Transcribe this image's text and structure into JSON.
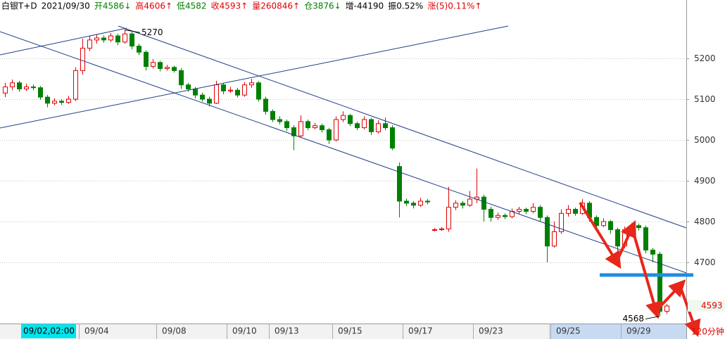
{
  "chart_data": {
    "type": "candlestick",
    "header": [
      {
        "text": "白银T+D",
        "color": "#000000"
      },
      {
        "text": "2021/09/30",
        "color": "#000000"
      },
      {
        "text": "开4586↓",
        "color": "#008000"
      },
      {
        "text": "高4606↑",
        "color": "#e00000"
      },
      {
        "text": "低4582",
        "color": "#008000"
      },
      {
        "text": "收4593↑",
        "color": "#e00000"
      },
      {
        "text": "量260846↑",
        "color": "#e00000"
      },
      {
        "text": "仓3876↓",
        "color": "#008000"
      },
      {
        "text": "增-44190",
        "color": "#000000"
      },
      {
        "text": "振0.52%",
        "color": "#000000"
      },
      {
        "text": "涨(5)0.11%↑",
        "color": "#e00000"
      }
    ],
    "categories": [
      null,
      null,
      null,
      null,
      null,
      null,
      null,
      null,
      null,
      null,
      null,
      "09/04",
      null,
      null,
      null,
      null,
      null,
      null,
      null,
      null,
      null,
      null,
      "09/08",
      null,
      null,
      null,
      null,
      null,
      null,
      null,
      null,
      null,
      "09/10",
      null,
      null,
      null,
      null,
      null,
      "09/13",
      null,
      null,
      null,
      null,
      null,
      null,
      null,
      null,
      "09/15",
      null,
      null,
      null,
      null,
      null,
      null,
      null,
      null,
      null,
      "09/17",
      null,
      null,
      null,
      null,
      null,
      null,
      null,
      null,
      null,
      "09/23",
      null,
      null,
      null,
      null,
      null,
      null,
      null,
      null,
      null,
      null,
      "09/25",
      null,
      null,
      null,
      null,
      null,
      null,
      null,
      null,
      null,
      "09/29",
      null,
      null,
      null,
      null,
      null,
      null
    ],
    "cursor_label": "09/02,02:00",
    "period_label": "120分钟",
    "up_color": "#e00000",
    "down_color": "#008000",
    "ohlc": [
      [
        5115,
        5140,
        5105,
        5130
      ],
      [
        5130,
        5148,
        5122,
        5140
      ],
      [
        5140,
        5145,
        5118,
        5125
      ],
      [
        5125,
        5138,
        5120,
        5130
      ],
      [
        5130,
        5136,
        5122,
        5128
      ],
      [
        5128,
        5132,
        5098,
        5105
      ],
      [
        5105,
        5110,
        5080,
        5090
      ],
      [
        5090,
        5102,
        5085,
        5095
      ],
      [
        5095,
        5100,
        5086,
        5092
      ],
      [
        5092,
        5108,
        5088,
        5100
      ],
      [
        5100,
        5178,
        5095,
        5170
      ],
      [
        5170,
        5248,
        5160,
        5225
      ],
      [
        5225,
        5255,
        5218,
        5245
      ],
      [
        5245,
        5258,
        5236,
        5250
      ],
      [
        5250,
        5256,
        5238,
        5245
      ],
      [
        5245,
        5262,
        5240,
        5255
      ],
      [
        5255,
        5260,
        5232,
        5240
      ],
      [
        5240,
        5270,
        5236,
        5260
      ],
      [
        5260,
        5265,
        5222,
        5230
      ],
      [
        5230,
        5236,
        5208,
        5215
      ],
      [
        5215,
        5220,
        5170,
        5180
      ],
      [
        5180,
        5198,
        5175,
        5190
      ],
      [
        5190,
        5194,
        5168,
        5175
      ],
      [
        5175,
        5184,
        5170,
        5178
      ],
      [
        5178,
        5182,
        5165,
        5170
      ],
      [
        5170,
        5176,
        5125,
        5135
      ],
      [
        5135,
        5140,
        5118,
        5125
      ],
      [
        5125,
        5130,
        5102,
        5110
      ],
      [
        5110,
        5116,
        5094,
        5100
      ],
      [
        5100,
        5106,
        5082,
        5090
      ],
      [
        5090,
        5145,
        5088,
        5135
      ],
      [
        5135,
        5140,
        5112,
        5120
      ],
      [
        5120,
        5130,
        5115,
        5122
      ],
      [
        5122,
        5128,
        5104,
        5110
      ],
      [
        5110,
        5142,
        5106,
        5135
      ],
      [
        5135,
        5150,
        5128,
        5140
      ],
      [
        5140,
        5144,
        5094,
        5100
      ],
      [
        5100,
        5106,
        5062,
        5070
      ],
      [
        5070,
        5075,
        5044,
        5050
      ],
      [
        5050,
        5058,
        5038,
        5045
      ],
      [
        5045,
        5050,
        5022,
        5030
      ],
      [
        5030,
        5036,
        4975,
        5010
      ],
      [
        5010,
        5060,
        5005,
        5045
      ],
      [
        5045,
        5050,
        5024,
        5030
      ],
      [
        5030,
        5042,
        5026,
        5035
      ],
      [
        5035,
        5040,
        5018,
        5025
      ],
      [
        5025,
        5030,
        4990,
        5000
      ],
      [
        5000,
        5058,
        4996,
        5050
      ],
      [
        5050,
        5070,
        5044,
        5060
      ],
      [
        5060,
        5064,
        5034,
        5040
      ],
      [
        5040,
        5045,
        5024,
        5030
      ],
      [
        5030,
        5058,
        5026,
        5050
      ],
      [
        5050,
        5054,
        5012,
        5020
      ],
      [
        5020,
        5048,
        5016,
        5040
      ],
      [
        5040,
        5055,
        5024,
        5030
      ],
      [
        5030,
        5036,
        4975,
        4980
      ],
      [
        4935,
        4945,
        4810,
        4850
      ],
      [
        4850,
        4856,
        4838,
        4845
      ],
      [
        4845,
        4850,
        4832,
        4840
      ],
      [
        4840,
        4858,
        4836,
        4850
      ],
      [
        4850,
        4855,
        4842,
        4848
      ],
      [
        4780,
        4784,
        4776,
        4780
      ],
      [
        4780,
        4786,
        4777,
        4782
      ],
      [
        4782,
        4885,
        4775,
        4835
      ],
      [
        4835,
        4852,
        4828,
        4845
      ],
      [
        4845,
        4850,
        4832,
        4840
      ],
      [
        4840,
        4875,
        4836,
        4855
      ],
      [
        4855,
        4930,
        4845,
        4860
      ],
      [
        4860,
        4866,
        4800,
        4830
      ],
      [
        4830,
        4836,
        4800,
        4810
      ],
      [
        4810,
        4822,
        4804,
        4815
      ],
      [
        4815,
        4820,
        4806,
        4812
      ],
      [
        4812,
        4832,
        4808,
        4825
      ],
      [
        4825,
        4836,
        4818,
        4830
      ],
      [
        4830,
        4834,
        4818,
        4825
      ],
      [
        4825,
        4845,
        4820,
        4835
      ],
      [
        4835,
        4840,
        4800,
        4810
      ],
      [
        4810,
        4815,
        4700,
        4740
      ],
      [
        4740,
        4800,
        4736,
        4775
      ],
      [
        4775,
        4830,
        4770,
        4820
      ],
      [
        4820,
        4840,
        4812,
        4830
      ],
      [
        4830,
        4834,
        4814,
        4820
      ],
      [
        4820,
        4855,
        4816,
        4845
      ],
      [
        4845,
        4850,
        4800,
        4810
      ],
      [
        4810,
        4815,
        4782,
        4790
      ],
      [
        4790,
        4808,
        4786,
        4800
      ],
      [
        4800,
        4804,
        4770,
        4780
      ],
      [
        4780,
        4785,
        4720,
        4740
      ],
      [
        4740,
        4788,
        4735,
        4780
      ],
      [
        4780,
        4796,
        4774,
        4790
      ],
      [
        4790,
        4795,
        4778,
        4785
      ],
      [
        4785,
        4790,
        4722,
        4730
      ],
      [
        4730,
        4735,
        4700,
        4720
      ],
      [
        4720,
        4726,
        4568,
        4580
      ],
      [
        4580,
        4598,
        4574,
        4593
      ]
    ],
    "ylim": [
      4550,
      5312
    ],
    "yticks": [
      4700,
      4800,
      4900,
      5000,
      5100,
      5200
    ],
    "grid": true,
    "high_label": "5270",
    "low_label": "4568",
    "last_price": {
      "value": 4593,
      "label": "4593"
    }
  }
}
